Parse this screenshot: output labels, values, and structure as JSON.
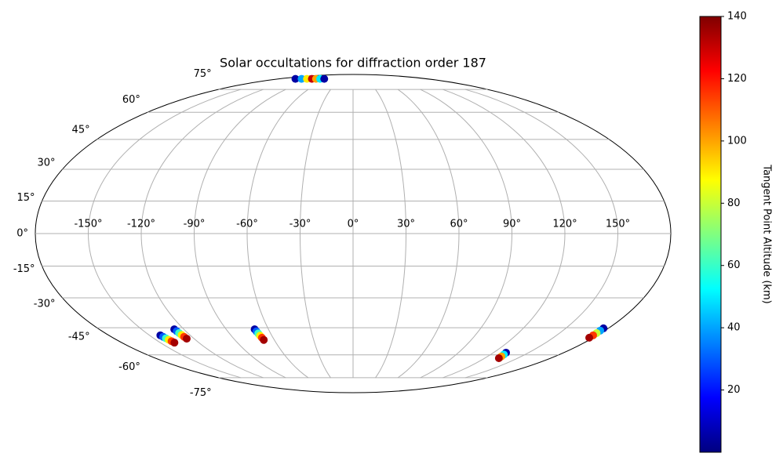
{
  "chart_data": {
    "type": "scatter",
    "projection": "mollweide",
    "title": "Solar occultations for diffraction order 187",
    "xlim": [
      -180,
      180
    ],
    "ylim": [
      -90,
      90
    ],
    "xticks": [
      {
        "value": -150,
        "label": "-150°"
      },
      {
        "value": -120,
        "label": "-120°"
      },
      {
        "value": -90,
        "label": "-90°"
      },
      {
        "value": -60,
        "label": "-60°"
      },
      {
        "value": -30,
        "label": "-30°"
      },
      {
        "value": 0,
        "label": "0°"
      },
      {
        "value": 30,
        "label": "30°"
      },
      {
        "value": 60,
        "label": "60°"
      },
      {
        "value": 90,
        "label": "90°"
      },
      {
        "value": 120,
        "label": "120°"
      },
      {
        "value": 150,
        "label": "150°"
      }
    ],
    "yticks": [
      {
        "value": -75,
        "label": "-75°"
      },
      {
        "value": -60,
        "label": "-60°"
      },
      {
        "value": -45,
        "label": "-45°"
      },
      {
        "value": -30,
        "label": "-30°"
      },
      {
        "value": -15,
        "label": "-15°"
      },
      {
        "value": 0,
        "label": "0°"
      },
      {
        "value": 15,
        "label": "15°"
      },
      {
        "value": 30,
        "label": "30°"
      },
      {
        "value": 45,
        "label": "45°"
      },
      {
        "value": 60,
        "label": "60°"
      },
      {
        "value": 75,
        "label": "75°"
      }
    ],
    "grid": true,
    "x": [
      -140,
      -125,
      -112,
      -100,
      -90,
      -80,
      -70,
      -142,
      -141.4,
      -140.8,
      -140.2,
      -139.6,
      -139,
      -126.8,
      -126.5,
      -126.3,
      -126,
      -125.8,
      -125.5,
      -69.8,
      -69.4,
      -69,
      -68.7,
      -68.3,
      -68,
      130.7,
      131.5,
      132.2,
      132.9,
      176.6,
      176.7,
      176.8,
      176.9,
      177
    ],
    "y": [
      84,
      84,
      84,
      84,
      84,
      84,
      84,
      -49,
      -49.8,
      -50.6,
      -51.4,
      -52.2,
      -53,
      -45.8,
      -46.8,
      -47.8,
      -48.8,
      -49.8,
      -50.8,
      -45.8,
      -46.9,
      -48,
      -49.2,
      -50.3,
      -51.5,
      -58.7,
      -59.8,
      -60.9,
      -62,
      -45.3,
      -46.5,
      -47.8,
      -49,
      -50.3
    ],
    "c": [
      5,
      40,
      90,
      130,
      100,
      50,
      5,
      5,
      30,
      60,
      90,
      115,
      135,
      5,
      30,
      60,
      90,
      115,
      135,
      5,
      30,
      60,
      90,
      115,
      135,
      5,
      50,
      100,
      135,
      5,
      40,
      80,
      115,
      135
    ],
    "colorbar": {
      "label": "Tangent Point Altitude (km)",
      "cmap": "jet",
      "lim": [
        0,
        140
      ],
      "ticks": [
        20,
        40,
        60,
        80,
        100,
        120,
        140
      ]
    }
  }
}
